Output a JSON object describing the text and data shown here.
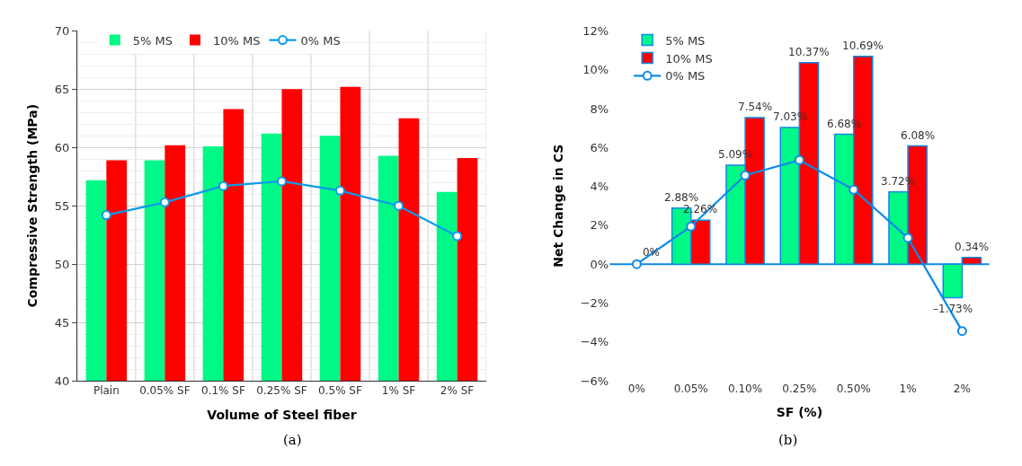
{
  "chart_data": [
    {
      "type": "bar",
      "xlabel": "Volume of Steel fiber",
      "ylabel": "Compressive Strength (MPa)",
      "categories": [
        "Plain",
        "0.05% SF",
        "0.1% SF",
        "0.25% SF",
        "0.5% SF",
        "1% SF",
        "2% SF"
      ],
      "series": [
        {
          "name": "5% MS",
          "color": "#00f986",
          "values": [
            57.2,
            58.9,
            60.1,
            61.2,
            61.0,
            59.3,
            56.2
          ]
        },
        {
          "name": "10% MS",
          "color": "#ff0000",
          "values": [
            58.9,
            60.2,
            63.3,
            65.0,
            65.2,
            62.5,
            59.1
          ]
        },
        {
          "name": "0% MS",
          "type": "line",
          "color": "#0d9aeb",
          "marker": "circle",
          "values": [
            54.2,
            55.3,
            56.7,
            57.1,
            56.3,
            55.0,
            52.4
          ]
        }
      ],
      "ylim": [
        40,
        70
      ],
      "yticks": [
        40,
        45,
        50,
        55,
        60,
        65,
        70
      ],
      "grid": true,
      "legend": "top left",
      "annotations": [
        "(a)"
      ]
    },
    {
      "type": "bar",
      "xlabel": "SF (%)",
      "ylabel": "Net Change in CS",
      "categories": [
        "0%",
        "0.05%",
        "0.10%",
        "0.25%",
        "0.50%",
        "1%",
        "2%"
      ],
      "series": [
        {
          "name": "5% MS",
          "color": "#00f986",
          "values": [
            null,
            2.88,
            5.09,
            7.03,
            6.68,
            3.72,
            -1.73
          ],
          "value_labels": [
            null,
            "2.88%",
            "5.09%",
            "7.03%",
            "6.68%",
            "3.72%",
            "–1.73%"
          ]
        },
        {
          "name": "10% MS",
          "color": "#ff0000",
          "values": [
            null,
            2.26,
            7.54,
            10.37,
            10.69,
            6.08,
            0.34
          ],
          "value_labels": [
            null,
            "2.26%",
            "7.54%",
            "10.37%",
            "10.69%",
            "6.08%",
            "0.34%"
          ]
        },
        {
          "name": "0% MS",
          "type": "line",
          "color": "#0d8ae8",
          "marker": "circle",
          "values": [
            0,
            1.94,
            4.57,
            5.35,
            3.83,
            1.35,
            -3.44
          ],
          "value_labels": [
            "0%",
            null,
            null,
            null,
            null,
            null,
            null
          ]
        }
      ],
      "ylim": [
        -6,
        12
      ],
      "ref_lines": [
        {
          "axis": "y",
          "value": 0,
          "color": "#0d8ae8"
        }
      ],
      "yticks": [
        {
          "value": -6,
          "label": "−6%"
        },
        {
          "value": -4,
          "label": "−4%"
        },
        {
          "value": -2,
          "label": "−2%"
        },
        {
          "value": 0,
          "label": "0%"
        },
        {
          "value": 2,
          "label": "2%"
        },
        {
          "value": 4,
          "label": "4%"
        },
        {
          "value": 6,
          "label": "6%"
        },
        {
          "value": 8,
          "label": "8%"
        },
        {
          "value": 10,
          "label": "10%"
        },
        {
          "value": 12,
          "label": "12%"
        }
      ],
      "grid": false,
      "legend": "top left",
      "annotations": [
        "(b)"
      ]
    }
  ]
}
